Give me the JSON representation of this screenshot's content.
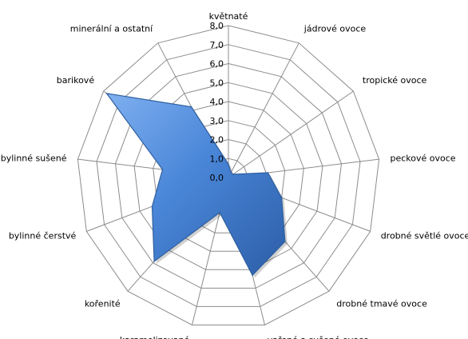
{
  "chart_data": {
    "type": "radar",
    "axes": [
      "květnaté",
      "jádrové ovoce",
      "tropické ovoce",
      "peckové ovoce",
      "drobné světlé ovoce",
      "drobné tmavé ovoce",
      "vařené a sušené ovoce",
      "karamelizované",
      "kořenité",
      "bylinné čerstvé",
      "bylinné sušené",
      "barikové",
      "minerální a ostatní"
    ],
    "series": [
      {
        "values": [
          0.7,
          0.3,
          0.3,
          2.1,
          3.0,
          4.5,
          5.3,
          1.9,
          5.9,
          4.3,
          3.5,
          7.8,
          4.2
        ]
      }
    ],
    "rlim": [
      0,
      8
    ],
    "ticks": [
      "0,0",
      "1,0",
      "2,0",
      "3,0",
      "4,0",
      "5,0",
      "6,0",
      "7,0",
      "8,0"
    ],
    "grid": true,
    "legend": "none",
    "color": "#4a86d8"
  }
}
